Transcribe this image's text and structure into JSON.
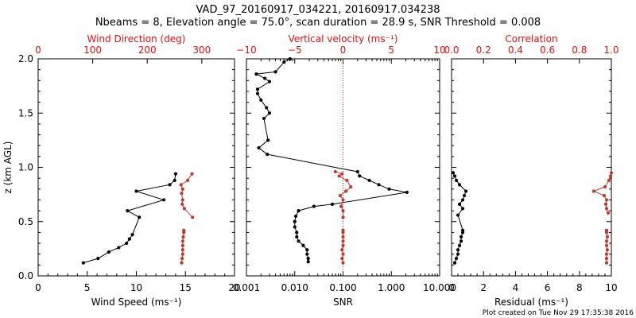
{
  "title": {
    "line1": "VAD_97_20160917_034221, 20160917.034238",
    "line2": "Nbeams = 8, Elevation angle = 75.0°, scan duration = 28.9 s, SNR Threshold = 0.008"
  },
  "footer": "Plot created on Tue Nov 29 17:35:38 2016",
  "colors": {
    "black": "#000000",
    "red": "#c0392b",
    "red_axis": "#e01010"
  },
  "chart_data": [
    {
      "type": "line",
      "panel": "wind",
      "ylabel": "z (km AGL)",
      "ylim": [
        0,
        2
      ],
      "yticks": [
        "0.0",
        "0.5",
        "1.0",
        "1.5",
        "2.0"
      ],
      "bottom_axis": {
        "label": "Wind Speed (ms⁻¹)",
        "range": [
          0,
          20
        ],
        "ticks": [
          "0",
          "5",
          "10",
          "15",
          "20"
        ]
      },
      "top_axis": {
        "label": "Wind Direction (deg)",
        "range": [
          0,
          360
        ],
        "ticks": [
          "0",
          "100",
          "200",
          "300"
        ]
      },
      "series": [
        {
          "name": "Wind Speed",
          "axis": "bottom",
          "color": "black",
          "points": [
            [
              4.6,
              0.12
            ],
            [
              6.1,
              0.16
            ],
            [
              7.2,
              0.22
            ],
            [
              8.2,
              0.26
            ],
            [
              9.0,
              0.3
            ],
            [
              9.3,
              0.34
            ],
            [
              9.6,
              0.38
            ],
            [
              10.3,
              0.54
            ],
            [
              9.1,
              0.6
            ],
            [
              12.8,
              0.7
            ],
            [
              10.0,
              0.78
            ],
            [
              13.4,
              0.84
            ],
            [
              13.9,
              0.88
            ],
            [
              14.0,
              0.94
            ]
          ]
        },
        {
          "name": "Wind Direction",
          "axis": "top",
          "color": "red",
          "points": [
            [
              263,
              0.12
            ],
            [
              264,
              0.16
            ],
            [
              265,
              0.2
            ],
            [
              265,
              0.24
            ],
            [
              265,
              0.28
            ],
            [
              265,
              0.32
            ],
            [
              266,
              0.36
            ],
            [
              267,
              0.4
            ],
            [
              267,
              0.42
            ],
            [
              283,
              0.54
            ],
            [
              268,
              0.62
            ],
            [
              264,
              0.66
            ],
            [
              265,
              0.7
            ],
            [
              263,
              0.76
            ],
            [
              265,
              0.8
            ],
            [
              262,
              0.84
            ],
            [
              274,
              0.88
            ],
            [
              282,
              0.94
            ]
          ]
        }
      ]
    },
    {
      "type": "line",
      "panel": "snr",
      "ylim": [
        0,
        2
      ],
      "bottom_axis": {
        "label": "SNR",
        "scale": "log",
        "range": [
          0.001,
          10
        ],
        "ticks": [
          "0.001",
          "0.010",
          "0.100",
          "1.000",
          "10.000"
        ]
      },
      "top_axis": {
        "label": "Vertical velocity (ms⁻¹)",
        "range": [
          -10,
          10
        ],
        "ticks": [
          "−10",
          "−5",
          "0",
          "5",
          "10"
        ]
      },
      "reference_line": {
        "axis": "top",
        "value": 0,
        "style": "dotted"
      },
      "series": [
        {
          "name": "SNR",
          "axis": "bottom",
          "color": "black",
          "points": [
            [
              0.019,
              0.13
            ],
            [
              0.019,
              0.16
            ],
            [
              0.018,
              0.2
            ],
            [
              0.018,
              0.24
            ],
            [
              0.015,
              0.28
            ],
            [
              0.012,
              0.32
            ],
            [
              0.011,
              0.36
            ],
            [
              0.011,
              0.4
            ],
            [
              0.01,
              0.45
            ],
            [
              0.01,
              0.5
            ],
            [
              0.0105,
              0.55
            ],
            [
              0.012,
              0.6
            ],
            [
              0.025,
              0.64
            ],
            [
              0.06,
              0.66
            ],
            [
              2.1,
              0.77
            ],
            [
              0.9,
              0.8
            ],
            [
              0.55,
              0.84
            ],
            [
              0.35,
              0.88
            ],
            [
              0.22,
              0.92
            ],
            [
              0.2,
              0.96
            ],
            [
              0.0027,
              1.12
            ],
            [
              0.0018,
              1.18
            ],
            [
              0.0028,
              1.25
            ],
            [
              0.0023,
              1.45
            ],
            [
              0.003,
              1.5
            ],
            [
              0.0026,
              1.55
            ],
            [
              0.002,
              1.62
            ],
            [
              0.0017,
              1.68
            ],
            [
              0.0017,
              1.72
            ],
            [
              0.003,
              1.79
            ],
            [
              0.0024,
              1.82
            ],
            [
              0.0016,
              1.86
            ],
            [
              0.004,
              1.88
            ],
            [
              0.006,
              1.97
            ],
            [
              0.008,
              2.0
            ]
          ]
        },
        {
          "name": "Vertical velocity",
          "axis": "top",
          "color": "red",
          "points": [
            [
              0.0,
              0.12
            ],
            [
              -0.1,
              0.16
            ],
            [
              0.0,
              0.2
            ],
            [
              -0.1,
              0.24
            ],
            [
              0.0,
              0.28
            ],
            [
              0.0,
              0.32
            ],
            [
              0.0,
              0.36
            ],
            [
              0.0,
              0.4
            ],
            [
              0.0,
              0.42
            ],
            [
              0.0,
              0.54
            ],
            [
              0.0,
              0.6
            ],
            [
              -0.2,
              0.64
            ],
            [
              0.0,
              0.7
            ],
            [
              -0.3,
              0.74
            ],
            [
              0.3,
              0.78
            ],
            [
              0.8,
              0.82
            ],
            [
              0.4,
              0.88
            ],
            [
              -0.4,
              0.92
            ],
            [
              -0.1,
              0.94
            ],
            [
              -0.8,
              0.96
            ]
          ]
        }
      ]
    },
    {
      "type": "line",
      "panel": "residual",
      "ylim": [
        0,
        2
      ],
      "bottom_axis": {
        "label": "Residual (ms⁻¹)",
        "range": [
          0,
          10
        ],
        "ticks": [
          "0",
          "2",
          "4",
          "6",
          "8",
          "10"
        ]
      },
      "top_axis": {
        "label": "Correlation",
        "range": [
          0,
          1
        ],
        "ticks": [
          "0.0",
          "0.2",
          "0.4",
          "0.6",
          "0.8",
          "1.0"
        ]
      },
      "series": [
        {
          "name": "Residual",
          "axis": "bottom",
          "color": "black",
          "points": [
            [
              0.2,
              0.12
            ],
            [
              0.3,
              0.16
            ],
            [
              0.4,
              0.2
            ],
            [
              0.4,
              0.24
            ],
            [
              0.5,
              0.28
            ],
            [
              0.6,
              0.32
            ],
            [
              0.6,
              0.36
            ],
            [
              0.7,
              0.4
            ],
            [
              0.7,
              0.42
            ],
            [
              0.4,
              0.56
            ],
            [
              0.7,
              0.62
            ],
            [
              0.5,
              0.66
            ],
            [
              0.7,
              0.7
            ],
            [
              0.8,
              0.74
            ],
            [
              0.9,
              0.78
            ],
            [
              0.5,
              0.84
            ],
            [
              0.3,
              0.88
            ],
            [
              0.2,
              0.92
            ],
            [
              0.1,
              0.95
            ]
          ]
        },
        {
          "name": "Correlation",
          "axis": "top",
          "color": "red",
          "points": [
            [
              0.97,
              0.12
            ],
            [
              0.97,
              0.16
            ],
            [
              0.97,
              0.2
            ],
            [
              0.975,
              0.24
            ],
            [
              0.97,
              0.28
            ],
            [
              0.97,
              0.32
            ],
            [
              0.975,
              0.36
            ],
            [
              0.97,
              0.4
            ],
            [
              0.97,
              0.42
            ],
            [
              0.98,
              0.58
            ],
            [
              0.97,
              0.62
            ],
            [
              0.965,
              0.66
            ],
            [
              0.97,
              0.7
            ],
            [
              0.955,
              0.74
            ],
            [
              0.89,
              0.78
            ],
            [
              0.96,
              0.82
            ],
            [
              0.985,
              0.88
            ],
            [
              0.995,
              0.92
            ],
            [
              1.0,
              0.95
            ]
          ]
        }
      ]
    }
  ]
}
